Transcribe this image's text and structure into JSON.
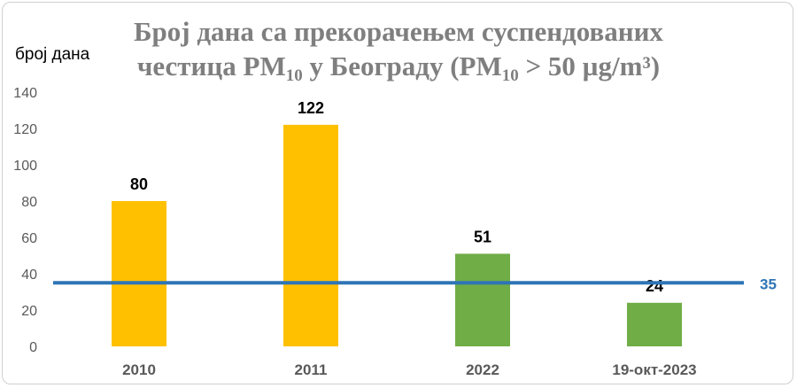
{
  "chart_data": {
    "type": "bar",
    "title_line1": "Број дана са прекорачењем суспендованих",
    "title_line2_prefix": "честица PM",
    "title_line2_sub1": "10",
    "title_line2_mid": "  у Београду (PM",
    "title_line2_sub2": "10",
    "title_line2_suffix": " > 50 µg/m³)",
    "ylabel": "број дана",
    "categories": [
      "2010",
      "2011",
      "2022",
      "19-окт-2023"
    ],
    "values": [
      80,
      122,
      51,
      24
    ],
    "bar_colors": [
      "#ffc000",
      "#ffc000",
      "#70ad47",
      "#70ad47"
    ],
    "ylim": [
      0,
      140
    ],
    "yticks": [
      0,
      20,
      40,
      60,
      80,
      100,
      120,
      140
    ],
    "grid": false,
    "limit_line": {
      "value": 35,
      "label": "35",
      "color": "#2e75b6"
    }
  }
}
